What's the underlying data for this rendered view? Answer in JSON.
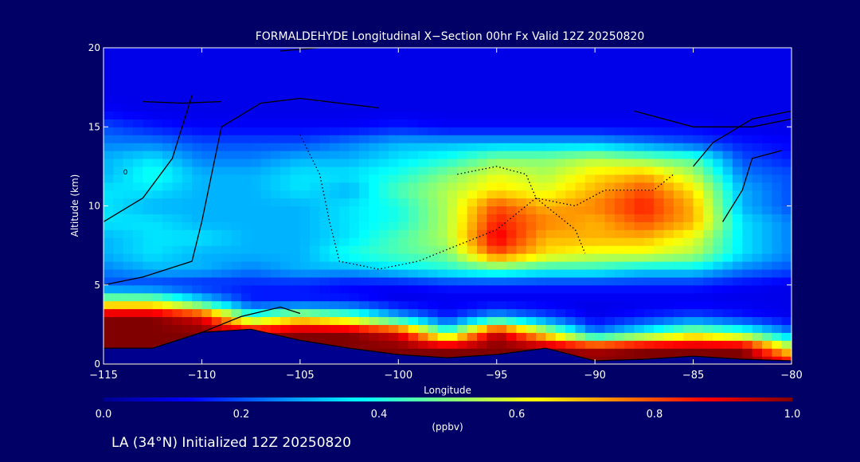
{
  "chart_data": {
    "type": "heatmap",
    "title": "FORMALDEHYDE Longitudinal X−Section 00hr  Fx Valid 12Z 20250820",
    "xlabel": "Longitude",
    "ylabel": "Altitude (km)",
    "xlim": [
      -115,
      -80
    ],
    "ylim": [
      0,
      20
    ],
    "x_ticks": [
      -115,
      -110,
      -105,
      -100,
      -95,
      -90,
      -85,
      -80
    ],
    "x_tick_labels": [
      "−115",
      "−110",
      "−105",
      "−100",
      "−95",
      "−90",
      "−85",
      "−80"
    ],
    "y_ticks": [
      0,
      5,
      10,
      15,
      20
    ],
    "y_tick_labels": [
      "0",
      "5",
      "10",
      "15",
      "20"
    ],
    "grid": false,
    "colorbar": {
      "label": "(ppbv)",
      "range": [
        0.0,
        1.0
      ],
      "ticks": [
        "0.0",
        "0.2",
        "0.4",
        "0.6",
        "0.8",
        "1.0"
      ],
      "colormap": "jet"
    },
    "background_color": "#000066",
    "footer": "LA (34°N) Initialized 12Z 20250820",
    "contour_labels": [
      "0"
    ],
    "field": {
      "x": [
        -115,
        -112.5,
        -110,
        -107.5,
        -105,
        -102.5,
        -100,
        -97.5,
        -95,
        -92.5,
        -90,
        -87.5,
        -85,
        -82.5,
        -80
      ],
      "y": [
        0,
        1,
        2,
        3,
        4,
        5,
        6,
        7,
        8,
        9,
        10,
        11,
        12,
        13,
        14,
        15,
        16,
        17,
        18,
        19,
        20
      ],
      "values_by_altitude": [
        [
          1.0,
          1.0,
          1.0,
          1.0,
          1.0,
          1.0,
          1.0,
          1.0,
          1.0,
          1.0,
          1.0,
          1.0,
          1.0,
          1.0,
          0.9
        ],
        [
          1.0,
          1.0,
          1.0,
          1.0,
          1.0,
          1.0,
          1.0,
          1.0,
          1.0,
          1.0,
          0.95,
          1.0,
          1.0,
          1.0,
          0.6
        ],
        [
          1.0,
          1.0,
          1.0,
          0.95,
          1.0,
          1.0,
          0.9,
          0.45,
          0.95,
          0.6,
          0.25,
          0.4,
          0.55,
          0.45,
          0.25
        ],
        [
          1.0,
          1.0,
          0.9,
          0.45,
          0.6,
          0.5,
          0.3,
          0.15,
          0.3,
          0.2,
          0.1,
          0.15,
          0.2,
          0.15,
          0.1
        ],
        [
          0.55,
          0.55,
          0.35,
          0.15,
          0.15,
          0.15,
          0.1,
          0.1,
          0.1,
          0.1,
          0.1,
          0.1,
          0.1,
          0.1,
          0.1
        ],
        [
          0.2,
          0.18,
          0.15,
          0.15,
          0.15,
          0.12,
          0.12,
          0.15,
          0.15,
          0.15,
          0.15,
          0.15,
          0.15,
          0.12,
          0.1
        ],
        [
          0.25,
          0.3,
          0.3,
          0.25,
          0.3,
          0.3,
          0.35,
          0.4,
          0.45,
          0.4,
          0.4,
          0.35,
          0.35,
          0.25,
          0.2
        ],
        [
          0.3,
          0.35,
          0.3,
          0.3,
          0.3,
          0.4,
          0.45,
          0.5,
          0.8,
          0.65,
          0.6,
          0.6,
          0.55,
          0.35,
          0.25
        ],
        [
          0.3,
          0.35,
          0.35,
          0.3,
          0.3,
          0.35,
          0.45,
          0.55,
          0.9,
          0.7,
          0.7,
          0.7,
          0.6,
          0.35,
          0.25
        ],
        [
          0.35,
          0.35,
          0.3,
          0.3,
          0.3,
          0.35,
          0.4,
          0.55,
          0.85,
          0.75,
          0.7,
          0.8,
          0.7,
          0.35,
          0.25
        ],
        [
          0.35,
          0.3,
          0.3,
          0.3,
          0.3,
          0.35,
          0.4,
          0.55,
          0.8,
          0.7,
          0.75,
          0.85,
          0.7,
          0.3,
          0.2
        ],
        [
          0.35,
          0.35,
          0.3,
          0.3,
          0.35,
          0.3,
          0.45,
          0.55,
          0.65,
          0.6,
          0.7,
          0.8,
          0.65,
          0.3,
          0.2
        ],
        [
          0.3,
          0.4,
          0.3,
          0.3,
          0.35,
          0.35,
          0.4,
          0.5,
          0.6,
          0.55,
          0.65,
          0.7,
          0.55,
          0.25,
          0.2
        ],
        [
          0.3,
          0.35,
          0.25,
          0.25,
          0.3,
          0.3,
          0.35,
          0.4,
          0.5,
          0.5,
          0.55,
          0.5,
          0.45,
          0.2,
          0.15
        ],
        [
          0.25,
          0.25,
          0.2,
          0.2,
          0.2,
          0.25,
          0.3,
          0.3,
          0.3,
          0.3,
          0.3,
          0.25,
          0.2,
          0.15,
          0.12
        ],
        [
          0.2,
          0.15,
          0.12,
          0.12,
          0.12,
          0.12,
          0.15,
          0.12,
          0.12,
          0.12,
          0.12,
          0.12,
          0.12,
          0.1,
          0.1
        ],
        [
          0.12,
          0.1,
          0.1,
          0.1,
          0.1,
          0.1,
          0.1,
          0.1,
          0.1,
          0.1,
          0.1,
          0.1,
          0.1,
          0.1,
          0.1
        ],
        [
          0.1,
          0.1,
          0.1,
          0.1,
          0.1,
          0.1,
          0.1,
          0.1,
          0.1,
          0.1,
          0.1,
          0.1,
          0.1,
          0.1,
          0.1
        ],
        [
          0.1,
          0.1,
          0.1,
          0.1,
          0.1,
          0.1,
          0.1,
          0.1,
          0.1,
          0.1,
          0.1,
          0.1,
          0.1,
          0.1,
          0.1
        ],
        [
          0.1,
          0.1,
          0.1,
          0.1,
          0.1,
          0.1,
          0.1,
          0.1,
          0.1,
          0.1,
          0.1,
          0.1,
          0.1,
          0.1,
          0.1
        ],
        [
          0.1,
          0.1,
          0.1,
          0.1,
          0.1,
          0.1,
          0.1,
          0.1,
          0.1,
          0.1,
          0.1,
          0.1,
          0.1,
          0.1,
          0.1
        ]
      ]
    },
    "terrain_top_km": {
      "x": [
        -115,
        -112.5,
        -110,
        -107.5,
        -105,
        -102.5,
        -100,
        -97.5,
        -95,
        -92.5,
        -90,
        -87.5,
        -85,
        -82.5,
        -80
      ],
      "values": [
        1.0,
        1.0,
        2.0,
        2.2,
        1.5,
        1.0,
        0.6,
        0.4,
        0.6,
        1.0,
        0.2,
        0.3,
        0.5,
        0.3,
        0.2
      ]
    }
  }
}
